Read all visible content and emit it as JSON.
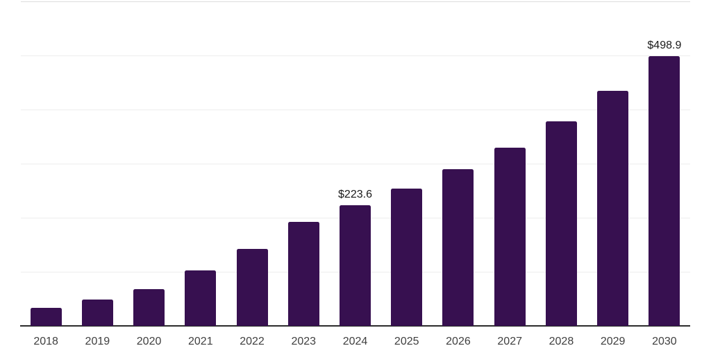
{
  "colors": {
    "background": "#ffffff",
    "bar": "#371050",
    "axis_line": "#2b2b2b",
    "gridline": "#ededed",
    "top_gridline": "#dcdcdc",
    "value_label_text": "#1a1a1a",
    "year_label_text": "#3f3f3f"
  },
  "chart_data": {
    "type": "bar",
    "title": "",
    "xlabel": "",
    "ylabel": "",
    "categories": [
      "2018",
      "2019",
      "2020",
      "2021",
      "2022",
      "2023",
      "2024",
      "2025",
      "2026",
      "2027",
      "2028",
      "2029",
      "2030"
    ],
    "values": [
      33.2,
      48.7,
      67.9,
      102.4,
      142.1,
      192.2,
      223.6,
      253.4,
      289.6,
      329.5,
      378.2,
      434.6,
      498.9
    ],
    "data_labels": [
      {
        "category": "2024",
        "text": "$223.6"
      },
      {
        "category": "2030",
        "text": "$498.9"
      }
    ],
    "value_prefix": "$",
    "ylim": [
      0,
      600
    ],
    "grid_step": 100,
    "gridlines": "horizontal",
    "y_tick_labels_visible": false,
    "legend": "none"
  }
}
